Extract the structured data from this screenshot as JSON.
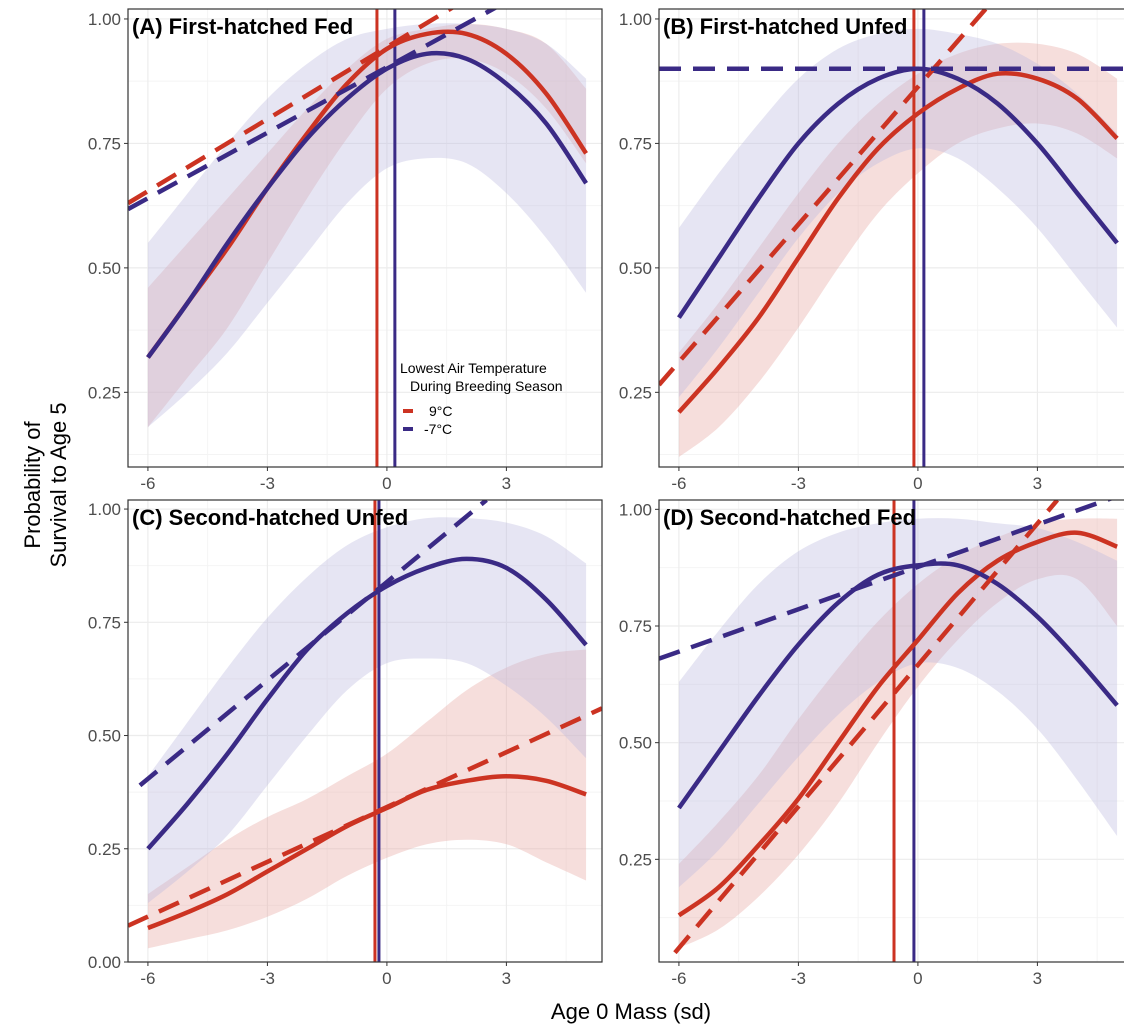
{
  "figure": {
    "ylabel_lines": [
      "Probability of",
      "Survival to Age 5"
    ],
    "xlabel": "Age 0 Mass (sd)"
  },
  "legend": {
    "title_lines": [
      "Lowest Air Temperature",
      "During Breeding Season"
    ],
    "entries": [
      {
        "label": "9°C",
        "color": "#cc3322"
      },
      {
        "label": "-7°C",
        "color": "#3a2a85"
      }
    ]
  },
  "colors": {
    "warm": "#cc3322",
    "cold": "#3a2a85",
    "warm_ribbon": "#e8a8a2",
    "cold_ribbon": "#bcbbe0",
    "grid": "#ececec",
    "border": "#333333"
  },
  "chart_data": [
    {
      "type": "line",
      "title": "(A) First-hatched Fed",
      "xlabel": "Age 0 Mass (sd)",
      "ylabel": "Probability of Survival to Age 5",
      "xlim": [
        -6.5,
        5.4
      ],
      "ylim": [
        0.1,
        1.02
      ],
      "xticks": [
        -6,
        -3,
        0,
        3
      ],
      "yticks": [
        0.25,
        0.5,
        0.75,
        1.0
      ],
      "vlines": {
        "warm": -0.25,
        "cold": 0.2
      },
      "series": [
        {
          "name": "9°C",
          "color": "warm",
          "style": "solid",
          "x": [
            -6,
            -5,
            -4,
            -3,
            -2,
            -1,
            0,
            1,
            2,
            3,
            4,
            5
          ],
          "y": [
            0.32,
            0.43,
            0.54,
            0.66,
            0.77,
            0.87,
            0.94,
            0.97,
            0.97,
            0.93,
            0.85,
            0.73
          ],
          "lower": [
            0.18,
            0.28,
            0.38,
            0.51,
            0.64,
            0.76,
            0.86,
            0.91,
            0.92,
            0.89,
            0.82,
            0.71
          ],
          "upper": [
            0.46,
            0.55,
            0.64,
            0.73,
            0.82,
            0.9,
            0.96,
            0.98,
            0.99,
            0.98,
            0.95,
            0.86
          ]
        },
        {
          "name": "-7°C",
          "color": "cold",
          "style": "solid",
          "x": [
            -6,
            -5,
            -4,
            -3,
            -2,
            -1,
            0,
            1,
            2,
            3,
            4,
            5
          ],
          "y": [
            0.32,
            0.43,
            0.55,
            0.66,
            0.76,
            0.84,
            0.9,
            0.93,
            0.92,
            0.87,
            0.79,
            0.67
          ],
          "lower": [
            0.18,
            0.25,
            0.33,
            0.43,
            0.53,
            0.63,
            0.7,
            0.72,
            0.71,
            0.65,
            0.56,
            0.45
          ],
          "upper": [
            0.55,
            0.65,
            0.75,
            0.84,
            0.91,
            0.96,
            0.98,
            0.99,
            0.99,
            0.98,
            0.95,
            0.88
          ]
        },
        {
          "name": "9°C",
          "color": "warm",
          "style": "dashed",
          "x": [
            -6.5,
            5.4
          ],
          "y": [
            0.63,
            1.204
          ]
        },
        {
          "name": "-7°C",
          "color": "cold",
          "style": "dashed",
          "x": [
            -6.5,
            5.4
          ],
          "y": [
            0.618,
            1.14
          ]
        }
      ]
    },
    {
      "type": "line",
      "title": "(B) First-hatched Unfed",
      "xlabel": "Age 0 Mass (sd)",
      "ylabel": "Probability of Survival to Age 5",
      "xlim": [
        -6.5,
        5.4
      ],
      "ylim": [
        0.1,
        1.02
      ],
      "xticks": [
        -6,
        -3,
        0,
        3
      ],
      "yticks": [
        0.25,
        0.5,
        0.75,
        1.0
      ],
      "vlines": {
        "warm": -0.1,
        "cold": 0.15
      },
      "series": [
        {
          "name": "9°C",
          "color": "warm",
          "style": "solid",
          "x": [
            -6,
            -5,
            -4,
            -3,
            -2,
            -1,
            0,
            1,
            2,
            3,
            4,
            5
          ],
          "y": [
            0.21,
            0.3,
            0.4,
            0.52,
            0.64,
            0.74,
            0.81,
            0.86,
            0.89,
            0.88,
            0.84,
            0.76
          ],
          "lower": [
            0.12,
            0.18,
            0.27,
            0.38,
            0.5,
            0.61,
            0.69,
            0.75,
            0.78,
            0.79,
            0.77,
            0.72
          ],
          "upper": [
            0.33,
            0.43,
            0.54,
            0.65,
            0.75,
            0.83,
            0.89,
            0.93,
            0.95,
            0.95,
            0.93,
            0.88
          ]
        },
        {
          "name": "-7°C",
          "color": "cold",
          "style": "solid",
          "x": [
            -6,
            -5,
            -4,
            -3,
            -2,
            -1,
            0,
            1,
            2,
            3,
            4,
            5
          ],
          "y": [
            0.4,
            0.52,
            0.64,
            0.75,
            0.83,
            0.88,
            0.9,
            0.88,
            0.83,
            0.75,
            0.65,
            0.55
          ],
          "lower": [
            0.24,
            0.34,
            0.45,
            0.56,
            0.65,
            0.71,
            0.74,
            0.72,
            0.66,
            0.58,
            0.48,
            0.38
          ],
          "upper": [
            0.58,
            0.69,
            0.79,
            0.88,
            0.94,
            0.97,
            0.98,
            0.97,
            0.95,
            0.91,
            0.85,
            0.77
          ]
        },
        {
          "name": "9°C",
          "color": "warm",
          "style": "dashed",
          "x": [
            -6.5,
            1.7
          ],
          "y": [
            0.265,
            1.02
          ]
        },
        {
          "name": "-7°C",
          "color": "cold",
          "style": "dashed",
          "x": [
            -6.5,
            5.4
          ],
          "y": [
            0.9,
            0.9
          ]
        }
      ]
    },
    {
      "type": "line",
      "title": "(C) Second-hatched Unfed",
      "xlabel": "Age 0 Mass (sd)",
      "ylabel": "Probability of Survival to Age 5",
      "xlim": [
        -6.5,
        5.4
      ],
      "ylim": [
        0.0,
        1.02
      ],
      "xticks": [
        -6,
        -3,
        0,
        3
      ],
      "yticks": [
        0.0,
        0.25,
        0.5,
        0.75,
        1.0
      ],
      "vlines": {
        "warm": -0.3,
        "cold": -0.2
      },
      "series": [
        {
          "name": "9°C",
          "color": "warm",
          "style": "solid",
          "x": [
            -6,
            -5,
            -4,
            -3,
            -2,
            -1,
            0,
            1,
            2,
            3,
            4,
            5
          ],
          "y": [
            0.075,
            0.11,
            0.15,
            0.2,
            0.25,
            0.3,
            0.34,
            0.38,
            0.4,
            0.41,
            0.4,
            0.37
          ],
          "lower": [
            0.03,
            0.05,
            0.07,
            0.1,
            0.14,
            0.19,
            0.23,
            0.26,
            0.27,
            0.26,
            0.22,
            0.18
          ],
          "upper": [
            0.15,
            0.21,
            0.27,
            0.32,
            0.36,
            0.41,
            0.46,
            0.53,
            0.6,
            0.65,
            0.68,
            0.69
          ]
        },
        {
          "name": "-7°C",
          "color": "cold",
          "style": "solid",
          "x": [
            -6,
            -5,
            -4,
            -3,
            -2,
            -1,
            0,
            1,
            2,
            3,
            4,
            5
          ],
          "y": [
            0.25,
            0.35,
            0.46,
            0.58,
            0.69,
            0.77,
            0.83,
            0.87,
            0.89,
            0.87,
            0.8,
            0.7
          ],
          "lower": [
            0.13,
            0.2,
            0.28,
            0.39,
            0.5,
            0.6,
            0.66,
            0.67,
            0.66,
            0.61,
            0.54,
            0.45
          ],
          "upper": [
            0.41,
            0.53,
            0.65,
            0.76,
            0.85,
            0.92,
            0.96,
            0.98,
            0.98,
            0.97,
            0.94,
            0.88
          ]
        },
        {
          "name": "9°C",
          "color": "warm",
          "style": "dashed",
          "x": [
            -6.5,
            5.4
          ],
          "y": [
            0.08,
            0.56
          ]
        },
        {
          "name": "-7°C",
          "color": "cold",
          "style": "dashed",
          "x": [
            -6.2,
            2.5
          ],
          "y": [
            0.39,
            1.02
          ]
        }
      ]
    },
    {
      "type": "line",
      "title": "(D) Second-hatched Fed",
      "xlabel": "Age 0 Mass (sd)",
      "ylabel": "Probability of Survival to Age 5",
      "xlim": [
        -6.5,
        5.4
      ],
      "ylim": [
        0.03,
        1.02
      ],
      "xticks": [
        -6,
        -3,
        0,
        3
      ],
      "yticks": [
        0.25,
        0.5,
        0.75,
        1.0
      ],
      "vlines": {
        "warm": -0.6,
        "cold": -0.1
      },
      "series": [
        {
          "name": "9°C",
          "color": "warm",
          "style": "solid",
          "x": [
            -6,
            -5,
            -4,
            -3,
            -2,
            -1,
            0,
            1,
            2,
            3,
            4,
            5
          ],
          "y": [
            0.13,
            0.19,
            0.28,
            0.38,
            0.5,
            0.62,
            0.72,
            0.82,
            0.89,
            0.93,
            0.95,
            0.92
          ],
          "lower": [
            0.06,
            0.1,
            0.17,
            0.26,
            0.37,
            0.5,
            0.62,
            0.72,
            0.8,
            0.85,
            0.85,
            0.75
          ],
          "upper": [
            0.24,
            0.33,
            0.43,
            0.55,
            0.66,
            0.76,
            0.84,
            0.9,
            0.94,
            0.97,
            0.98,
            0.98
          ]
        },
        {
          "name": "-7°C",
          "color": "cold",
          "style": "solid",
          "x": [
            -6,
            -5,
            -4,
            -3,
            -2,
            -1,
            0,
            1,
            2,
            3,
            4,
            5
          ],
          "y": [
            0.36,
            0.48,
            0.6,
            0.71,
            0.8,
            0.86,
            0.88,
            0.88,
            0.84,
            0.77,
            0.68,
            0.58
          ],
          "lower": [
            0.19,
            0.27,
            0.37,
            0.47,
            0.56,
            0.63,
            0.67,
            0.66,
            0.61,
            0.53,
            0.42,
            0.3
          ],
          "upper": [
            0.63,
            0.74,
            0.84,
            0.91,
            0.95,
            0.97,
            0.98,
            0.98,
            0.97,
            0.96,
            0.93,
            0.89
          ]
        },
        {
          "name": "9°C",
          "color": "warm",
          "style": "dashed",
          "x": [
            -6.1,
            3.5
          ],
          "y": [
            0.05,
            1.02
          ]
        },
        {
          "name": "-7°C",
          "color": "cold",
          "style": "dashed",
          "x": [
            -6.5,
            5.4
          ],
          "y": [
            0.68,
            1.04
          ]
        }
      ]
    }
  ]
}
